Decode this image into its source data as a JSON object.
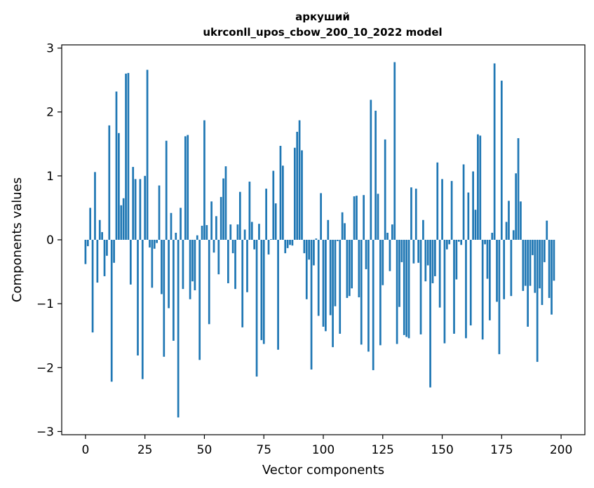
{
  "chart_data": {
    "type": "bar",
    "title": "аркуший",
    "subtitle": "ukrconll_upos_cbow_200_10_2022 model",
    "xlabel": "Vector components",
    "ylabel": "Components values",
    "xlim": [
      -10,
      210
    ],
    "ylim": [
      -3.05,
      3.05
    ],
    "xticks": [
      0,
      25,
      50,
      75,
      100,
      125,
      150,
      175,
      200
    ],
    "yticks": [
      -3,
      -2,
      -1,
      0,
      1,
      2,
      3
    ],
    "xtick_labels": [
      "0",
      "25",
      "50",
      "75",
      "100",
      "125",
      "150",
      "175",
      "200"
    ],
    "ytick_labels": [
      "−3",
      "−2",
      "−1",
      "0",
      "1",
      "2",
      "3"
    ],
    "grid": false,
    "bar_color": "#1f77b4",
    "values": [
      -0.38,
      -0.1,
      0.5,
      -1.45,
      1.06,
      -0.67,
      0.31,
      0.12,
      -0.57,
      -0.25,
      1.79,
      -2.22,
      -0.36,
      2.32,
      1.67,
      0.54,
      0.65,
      2.6,
      2.61,
      -0.7,
      1.14,
      0.95,
      -1.81,
      0.95,
      -2.18,
      1.0,
      2.66,
      -0.12,
      -0.75,
      -0.14,
      -0.05,
      0.85,
      -0.85,
      -1.83,
      1.55,
      -1.07,
      0.42,
      -1.58,
      0.11,
      -2.78,
      0.5,
      -0.77,
      1.62,
      1.64,
      -0.93,
      -0.65,
      -0.79,
      0.07,
      -1.88,
      0.22,
      1.87,
      0.23,
      -1.32,
      0.6,
      -0.2,
      0.37,
      -0.54,
      0.67,
      0.96,
      1.15,
      -0.68,
      0.24,
      -0.21,
      -0.77,
      0.24,
      0.75,
      -1.37,
      0.16,
      -0.82,
      0.91,
      0.28,
      -0.15,
      -2.14,
      0.25,
      -1.57,
      -1.63,
      0.8,
      -0.23,
      0.01,
      1.08,
      0.57,
      -1.72,
      1.47,
      1.16,
      -0.21,
      -0.13,
      -0.08,
      -0.09,
      1.44,
      1.69,
      1.87,
      1.4,
      -0.21,
      -0.93,
      -0.31,
      -2.03,
      -0.4,
      0.02,
      -1.19,
      0.73,
      -1.36,
      -1.43,
      0.31,
      -1.18,
      -1.68,
      -1.04,
      -0.02,
      -1.47,
      0.43,
      0.26,
      -0.91,
      -0.88,
      -0.76,
      0.68,
      0.69,
      -0.9,
      -1.64,
      0.7,
      -0.46,
      -1.75,
      2.19,
      -2.04,
      2.02,
      0.72,
      -1.65,
      -0.71,
      1.57,
      0.11,
      -0.49,
      0.24,
      2.78,
      -1.63,
      -1.05,
      -0.35,
      -1.49,
      -1.52,
      -1.54,
      0.82,
      -0.37,
      0.8,
      -0.36,
      -1.48,
      0.31,
      -0.65,
      -0.4,
      -2.31,
      -0.68,
      -0.57,
      1.21,
      -1.06,
      0.95,
      -1.62,
      -0.15,
      -0.07,
      0.92,
      -1.47,
      -0.62,
      -0.03,
      -0.08,
      1.18,
      -1.54,
      0.74,
      -1.34,
      1.07,
      0.47,
      1.65,
      1.63,
      -1.56,
      -0.07,
      -0.61,
      -1.26,
      0.11,
      2.76,
      -0.97,
      -1.79,
      2.49,
      -0.93,
      0.28,
      0.61,
      -0.88,
      0.15,
      1.04,
      1.59,
      0.6,
      -0.8,
      -0.72,
      -1.36,
      -0.72,
      -0.24,
      -0.83,
      -1.91,
      -0.76,
      -1.02,
      -0.35,
      0.3,
      -0.91,
      -1.17,
      -0.64
    ]
  }
}
